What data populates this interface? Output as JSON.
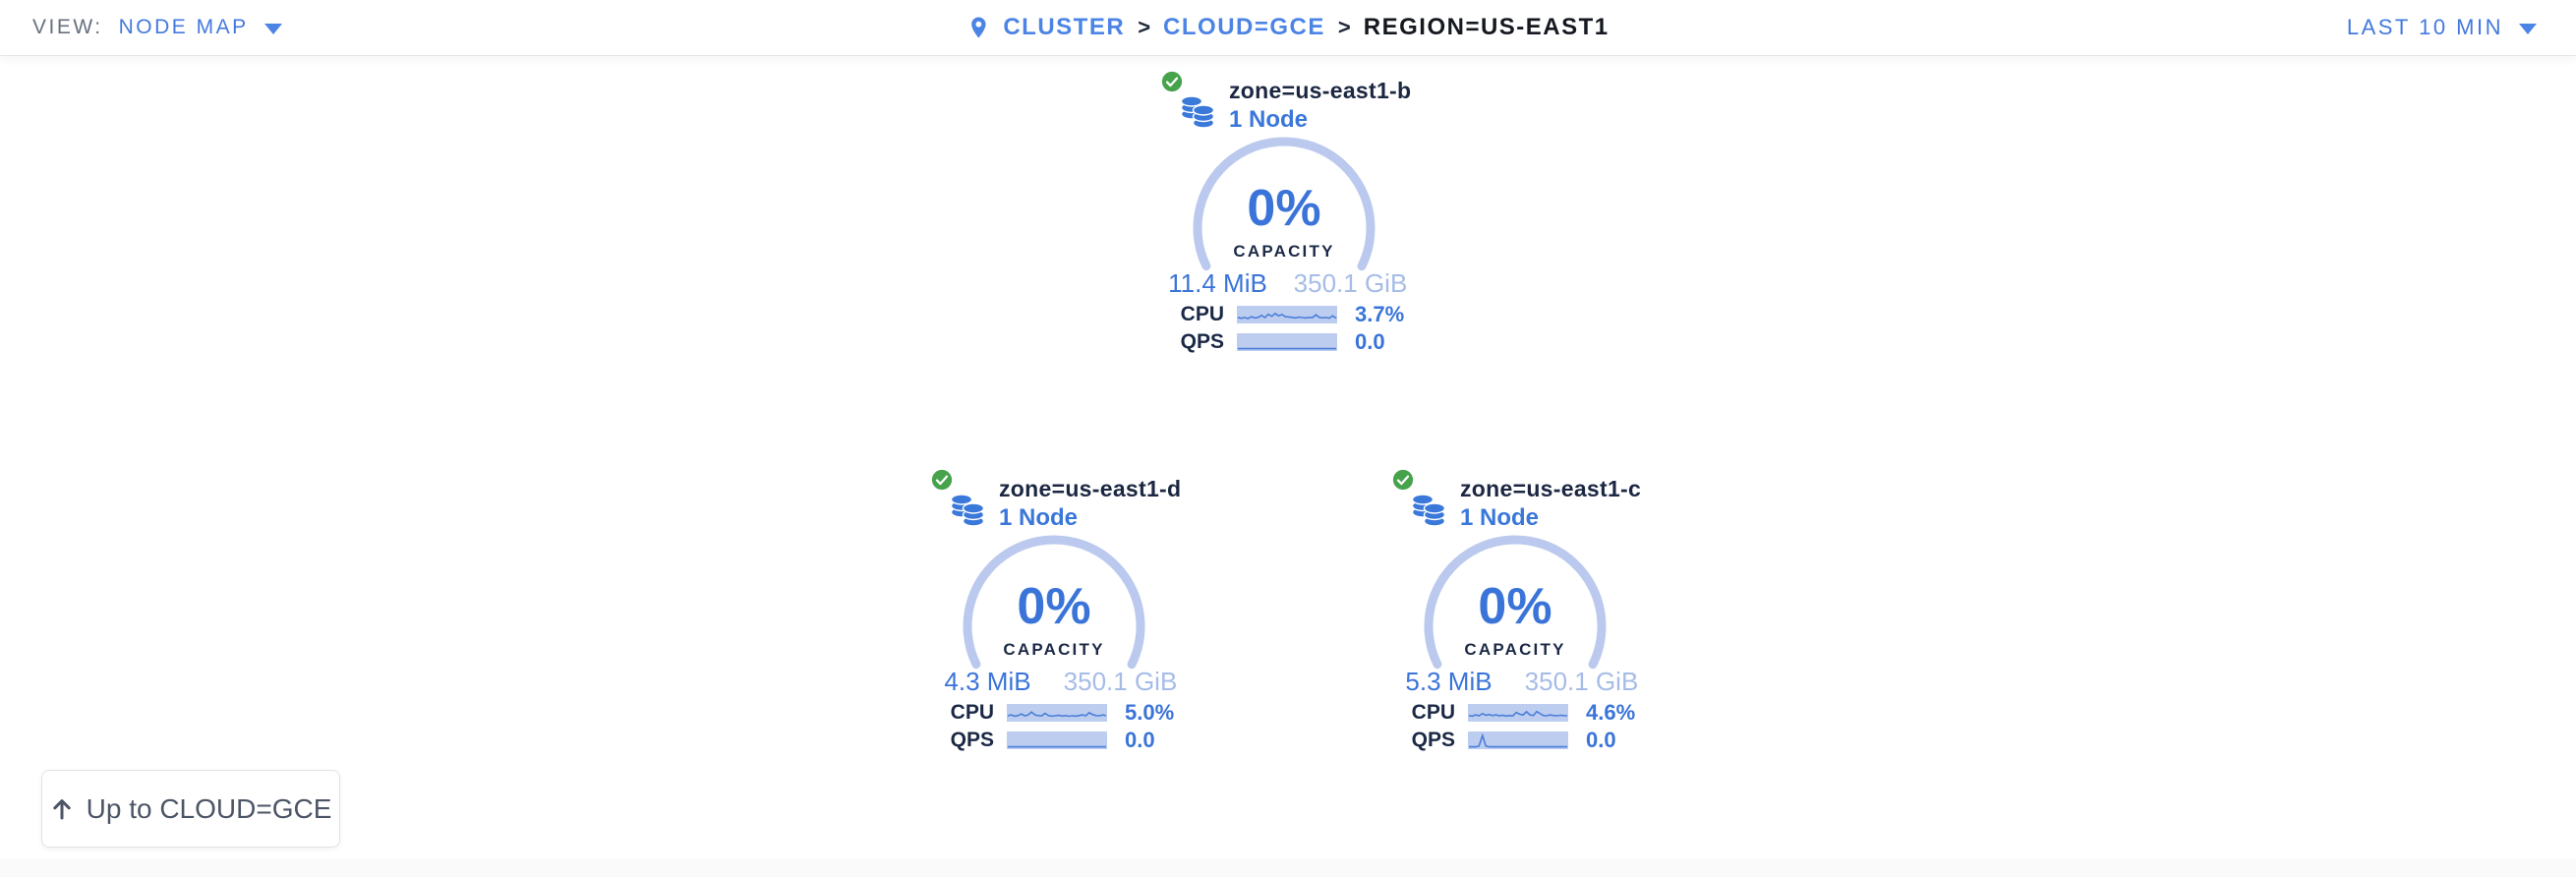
{
  "header": {
    "view_label": "VIEW:",
    "view_value": "NODE MAP",
    "breadcrumb": {
      "separator": ">",
      "items": [
        {
          "label": "CLUSTER"
        },
        {
          "label": "CLOUD=GCE"
        },
        {
          "label": "REGION=US-EAST1"
        }
      ]
    },
    "time_range": "LAST 10 MIN"
  },
  "map": {
    "zones": [
      {
        "name": "zone=us-east1-b",
        "node_count": "1 Node",
        "status": "healthy",
        "capacity_pct": "0%",
        "capacity_label": "CAPACITY",
        "capacity_used": "11.4 MiB",
        "capacity_total": "350.1 GiB",
        "cpu_label": "CPU",
        "cpu_value": "3.7%",
        "cpu_spark": [
          0.3,
          0.22,
          0.28,
          0.2,
          0.35,
          0.25,
          0.3,
          0.45,
          0.28,
          0.55,
          0.38,
          0.6,
          0.42,
          0.52,
          0.35,
          0.33,
          0.3,
          0.25,
          0.32,
          0.28,
          0.25,
          0.3,
          0.28,
          0.5,
          0.3,
          0.26,
          0.28,
          0.24,
          0.42,
          0.22
        ],
        "qps_label": "QPS",
        "qps_value": "0.0",
        "qps_spark": [
          0,
          0,
          0,
          0,
          0,
          0,
          0,
          0,
          0,
          0,
          0,
          0,
          0,
          0,
          0,
          0,
          0,
          0,
          0,
          0,
          0,
          0,
          0,
          0,
          0,
          0,
          0,
          0,
          0,
          0
        ]
      },
      {
        "name": "zone=us-east1-d",
        "node_count": "1 Node",
        "status": "healthy",
        "capacity_pct": "0%",
        "capacity_label": "CAPACITY",
        "capacity_used": "4.3 MiB",
        "capacity_total": "350.1 GiB",
        "cpu_label": "CPU",
        "cpu_value": "5.0%",
        "cpu_spark": [
          0.28,
          0.35,
          0.25,
          0.3,
          0.42,
          0.28,
          0.35,
          0.58,
          0.35,
          0.3,
          0.28,
          0.48,
          0.3,
          0.25,
          0.28,
          0.32,
          0.26,
          0.3,
          0.24,
          0.28,
          0.25,
          0.3,
          0.35,
          0.28,
          0.52,
          0.38,
          0.3,
          0.28,
          0.34,
          0.3
        ],
        "qps_label": "QPS",
        "qps_value": "0.0",
        "qps_spark": [
          0,
          0,
          0,
          0,
          0,
          0,
          0,
          0,
          0,
          0,
          0,
          0,
          0,
          0,
          0,
          0,
          0,
          0,
          0,
          0,
          0,
          0,
          0,
          0,
          0,
          0,
          0,
          0,
          0,
          0
        ]
      },
      {
        "name": "zone=us-east1-c",
        "node_count": "1 Node",
        "status": "healthy",
        "capacity_pct": "0%",
        "capacity_label": "CAPACITY",
        "capacity_used": "5.3 MiB",
        "capacity_total": "350.1 GiB",
        "cpu_label": "CPU",
        "cpu_value": "4.6%",
        "cpu_spark": [
          0.3,
          0.25,
          0.35,
          0.28,
          0.45,
          0.32,
          0.38,
          0.3,
          0.35,
          0.28,
          0.32,
          0.26,
          0.3,
          0.28,
          0.55,
          0.4,
          0.35,
          0.6,
          0.35,
          0.3,
          0.62,
          0.45,
          0.3,
          0.28,
          0.35,
          0.3,
          0.28,
          0.32,
          0.3,
          0.28
        ],
        "qps_label": "QPS",
        "qps_value": "0.0",
        "qps_spark": [
          0,
          0,
          0,
          0.06,
          0.9,
          0.06,
          0,
          0,
          0,
          0,
          0,
          0,
          0,
          0,
          0,
          0,
          0,
          0,
          0,
          0,
          0,
          0,
          0,
          0,
          0,
          0,
          0,
          0,
          0,
          0
        ]
      }
    ],
    "up_button": "Up to CLOUD=GCE"
  },
  "colors": {
    "accent_blue": "#3a74d9",
    "link_blue": "#4c84e6",
    "light_arc_blue": "#bac9ed",
    "faded_blue": "#a6bce7",
    "spark_bg": "#bccdf0",
    "spark_line": "#4c7ed8",
    "dark_navy": "#1b2946",
    "healthy_green": "#46a34b"
  }
}
